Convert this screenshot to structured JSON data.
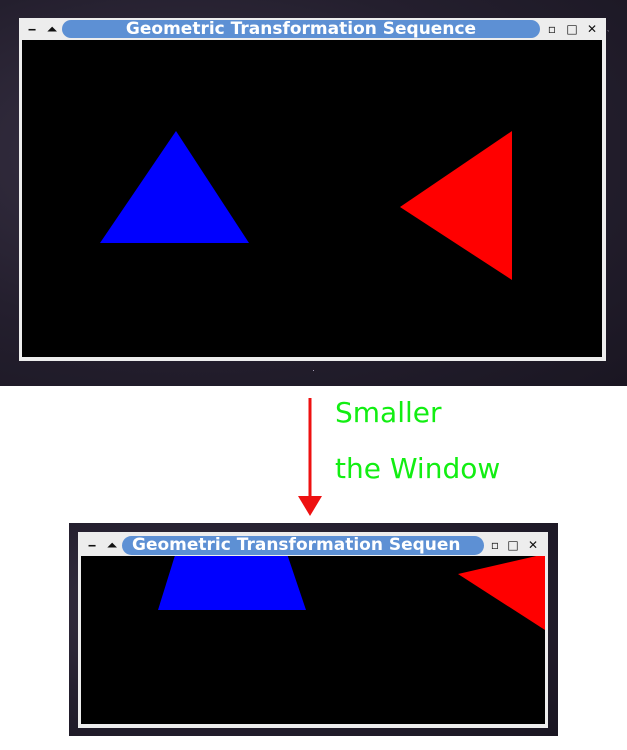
{
  "top_window": {
    "title": "Geometric Transformation Sequence",
    "controls": {
      "minimize": "‒",
      "shade": "⏶",
      "menu": "▫",
      "maximize": "□",
      "close": "✕"
    },
    "canvas_bg": "#000000",
    "shapes": [
      {
        "name": "blue-triangle",
        "color": "#0000ff"
      },
      {
        "name": "red-triangle",
        "color": "#ff0000"
      }
    ]
  },
  "annotation": {
    "line1": "Smaller",
    "line2": "the Window",
    "text_color": "#12ee12",
    "arrow_color": "#ee1111"
  },
  "bottom_window": {
    "title": "Geometric Transformation Sequen",
    "controls": {
      "minimize": "‒",
      "shade": "⏶",
      "maximize": "□",
      "close": "✕"
    },
    "canvas_bg": "#000000"
  },
  "colors": {
    "title_pill": "#5d90d4",
    "frame": "#ededed",
    "desktop": "#241f2e"
  }
}
